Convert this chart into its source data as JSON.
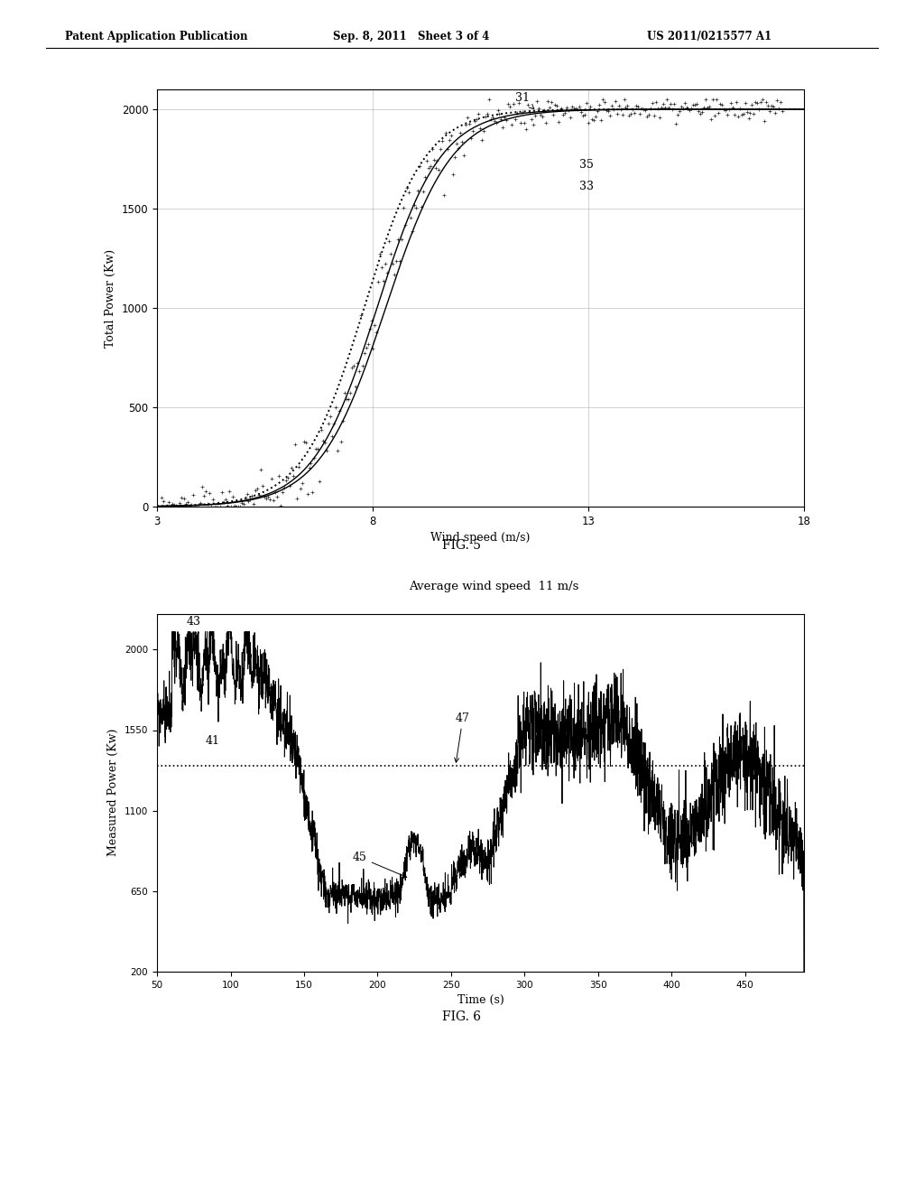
{
  "header_left": "Patent Application Publication",
  "header_mid": "Sep. 8, 2011   Sheet 3 of 4",
  "header_right": "US 2011/0215577 A1",
  "fig5": {
    "xlabel": "Wind speed (m/s)",
    "ylabel": "Total Power (Kw)",
    "xlim": [
      3,
      18
    ],
    "ylim": [
      0,
      2100
    ],
    "xticks": [
      3,
      8,
      13,
      18
    ],
    "yticks": [
      0,
      500,
      1000,
      1500,
      2000
    ],
    "caption": "FIG. 5"
  },
  "fig6": {
    "title": "Average wind speed  11 m/s",
    "xlabel": "Time (s)",
    "ylabel": "Measured Power (Kw)",
    "xlim": [
      50,
      490
    ],
    "ylim": [
      200,
      2200
    ],
    "yticks": [
      200,
      650,
      1100,
      1550,
      2000
    ],
    "ytick_labels": [
      "200",
      "650",
      "1100",
      "1550",
      "2000"
    ],
    "xticks": [
      50,
      100,
      150,
      200,
      250,
      300,
      350,
      400,
      450
    ],
    "dotted_line_y": 1350,
    "caption": "FIG. 6"
  },
  "bg_color": "#ffffff",
  "line_color": "#000000"
}
